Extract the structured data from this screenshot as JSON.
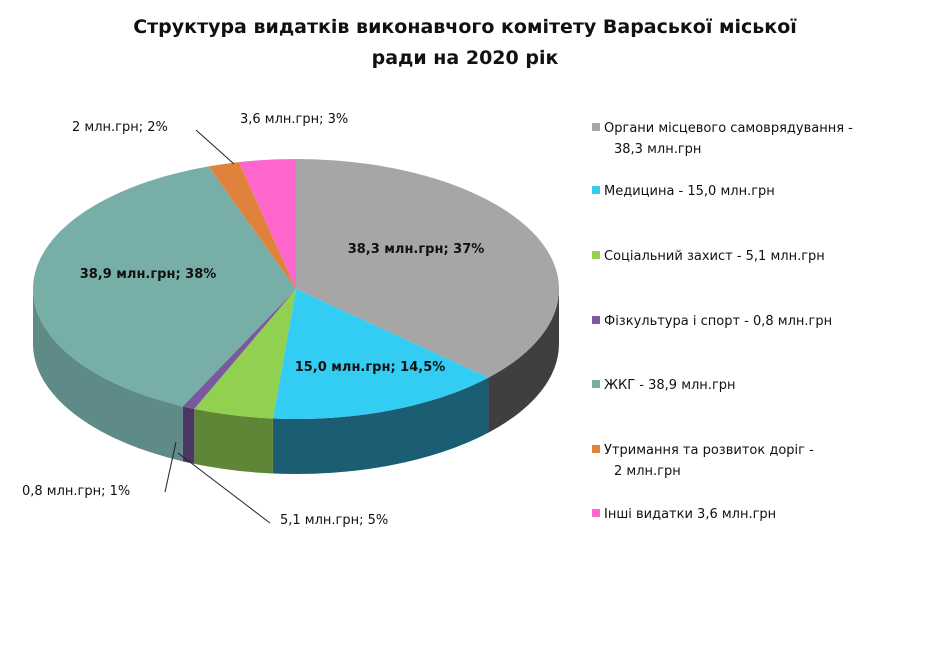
{
  "chart_data": {
    "type": "pie",
    "variant": "3d",
    "title": [
      "Структура видатків виконавчого комітету Вараської міської",
      "ради на 2020 рік"
    ],
    "slices": [
      {
        "label": "Органи місцевого самоврядування - 38,3 млн.грн",
        "legend_lines": [
          "Органи місцевого  самоврядування -",
          "38,3 млн.грн"
        ],
        "value": 38.3,
        "percent": 37,
        "color": "#A6A6A6",
        "side": "#3F3F3F",
        "data_label": "38,3  млн.грн;   37%"
      },
      {
        "label": "Медицина - 15,0 млн.грн",
        "legend_lines": [
          "Медицина - 15,0 млн.грн"
        ],
        "value": 15.0,
        "percent": 14.5,
        "color": "#33CCF3",
        "side": "#1B5E74",
        "data_label": "15,0  млн.грн; 14,5%"
      },
      {
        "label": "Соціальний захист - 5,1 млн.грн",
        "legend_lines": [
          "Соціальний захист  - 5,1 млн.грн"
        ],
        "value": 5.1,
        "percent": 5,
        "color": "#92D050",
        "side": "#5E8636",
        "data_label": "5,1  млн.грн; 5%"
      },
      {
        "label": "Фізкультура і спорт - 0,8 млн.грн",
        "legend_lines": [
          "Фізкультура і спорт -  0,8 млн.грн"
        ],
        "value": 0.8,
        "percent": 1,
        "color": "#7A5A9E",
        "side": "#4B3763",
        "data_label": "0,8  млн.грн;  1%"
      },
      {
        "label": "ЖКГ - 38,9 млн.грн",
        "legend_lines": [
          "ЖКГ - 38,9 млн.грн"
        ],
        "value": 38.9,
        "percent": 38,
        "color": "#78AEA8",
        "side": "#5E8A88",
        "data_label": "38,9  млн.грн;   38%"
      },
      {
        "label": "Утримання та розвиток доріг - 2 млн.грн",
        "legend_lines": [
          "Утримання та розвиток доріг -",
          "2 млн.грн"
        ],
        "value": 2,
        "percent": 2,
        "color": "#E0823C",
        "side": "#A75F28",
        "data_label": "2  млн.грн;  2%"
      },
      {
        "label": "Інші видатки 3,6 млн.грн",
        "legend_lines": [
          "Інші видатки  3,6 млн.грн"
        ],
        "value": 3.6,
        "percent": 3,
        "color": "#FF66CC",
        "side": "#B34890",
        "data_label": "3,6  млн.грн;  3%"
      }
    ],
    "legend_position": "right"
  }
}
